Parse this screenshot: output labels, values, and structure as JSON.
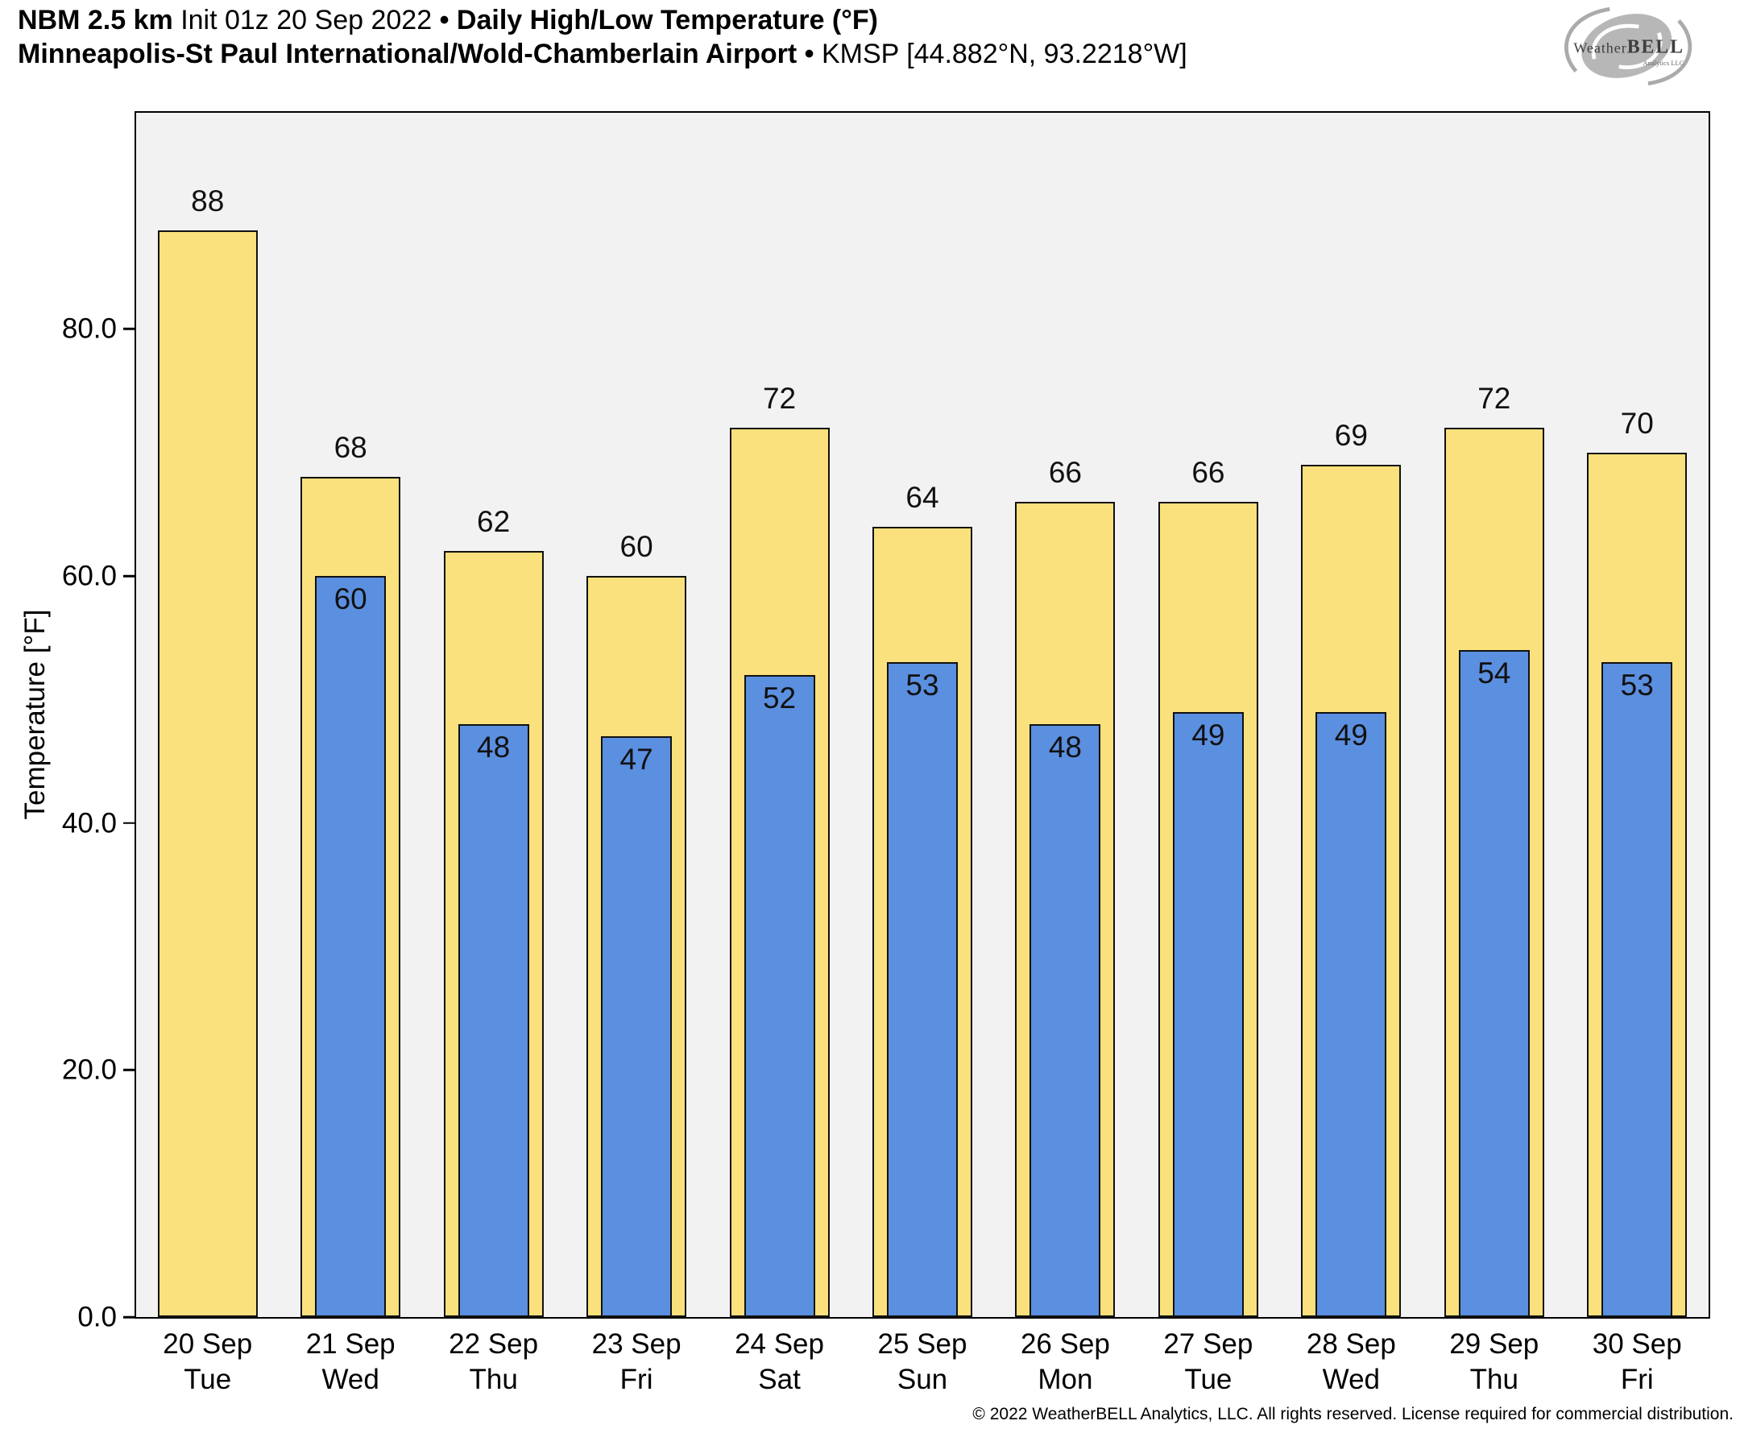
{
  "header": {
    "model": "NBM 2.5 km",
    "init": "Init 01z 20 Sep 2022",
    "bullet": "•",
    "product": "Daily High/Low Temperature (°F)",
    "station": "Minneapolis-St Paul International/Wold-Chamberlain Airport",
    "station_id": "KMSP [44.882°N, 93.2218°W]"
  },
  "logo": {
    "part1": "Weather",
    "part2": "BELL",
    "subtext": "Analytics LLC"
  },
  "chart_data": {
    "type": "bar",
    "title": "Daily High/Low Temperature (°F)",
    "ylabel": "Temperature [°F]",
    "ylim": [
      0,
      97.5
    ],
    "yticks": [
      0,
      20,
      40,
      60,
      80
    ],
    "ytick_labels": [
      "0.0",
      "20.0",
      "40.0",
      "60.0",
      "80.0"
    ],
    "grid": false,
    "legend": false,
    "plot_background": "#f2f2f2",
    "bar_edge_color": "#111111",
    "categories": [
      {
        "date": "20 Sep",
        "day": "Tue"
      },
      {
        "date": "21 Sep",
        "day": "Wed"
      },
      {
        "date": "22 Sep",
        "day": "Thu"
      },
      {
        "date": "23 Sep",
        "day": "Fri"
      },
      {
        "date": "24 Sep",
        "day": "Sat"
      },
      {
        "date": "25 Sep",
        "day": "Sun"
      },
      {
        "date": "26 Sep",
        "day": "Mon"
      },
      {
        "date": "27 Sep",
        "day": "Tue"
      },
      {
        "date": "28 Sep",
        "day": "Wed"
      },
      {
        "date": "29 Sep",
        "day": "Thu"
      },
      {
        "date": "30 Sep",
        "day": "Fri"
      }
    ],
    "series": [
      {
        "name": "High",
        "color": "#fae17d",
        "values": [
          88,
          68,
          62,
          60,
          72,
          64,
          66,
          66,
          69,
          72,
          70
        ]
      },
      {
        "name": "Low",
        "color": "#5b8fe0",
        "values": [
          null,
          60,
          48,
          47,
          52,
          53,
          48,
          49,
          49,
          54,
          53
        ]
      }
    ]
  },
  "footer": {
    "copyright": "© 2022 WeatherBELL Analytics, LLC. All rights reserved. License required for commercial distribution."
  }
}
